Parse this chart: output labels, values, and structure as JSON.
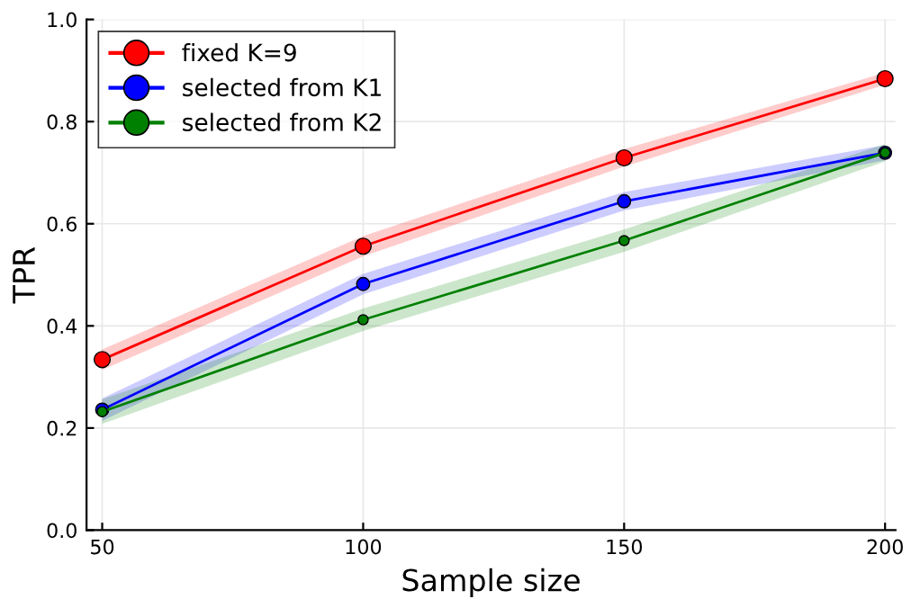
{
  "chart_data": {
    "type": "line",
    "xlabel": "Sample size",
    "ylabel": "TPR",
    "x": [
      50,
      100,
      150,
      200
    ],
    "series": [
      {
        "name": "fixed K=9",
        "color": "#ff0000",
        "values": [
          0.334,
          0.556,
          0.729,
          0.884
        ],
        "lower": [
          0.314,
          0.536,
          0.712,
          0.872
        ],
        "upper": [
          0.354,
          0.576,
          0.746,
          0.896
        ]
      },
      {
        "name": "selected from K1",
        "color": "#0000ff",
        "values": [
          0.236,
          0.482,
          0.644,
          0.739
        ],
        "lower": [
          0.214,
          0.462,
          0.626,
          0.724
        ],
        "upper": [
          0.258,
          0.502,
          0.662,
          0.754
        ]
      },
      {
        "name": "selected from K2",
        "color": "#008000",
        "values": [
          0.232,
          0.412,
          0.567,
          0.739
        ],
        "lower": [
          0.208,
          0.39,
          0.545,
          0.722
        ],
        "upper": [
          0.256,
          0.434,
          0.589,
          0.756
        ]
      }
    ],
    "xlim": [
      47,
      202
    ],
    "ylim": [
      0,
      1
    ],
    "xticks": [
      50,
      100,
      150,
      200
    ],
    "yticks": [
      {
        "value": 0,
        "label": "0.0"
      },
      {
        "value": 0.2,
        "label": "0.2"
      },
      {
        "value": 0.4,
        "label": "0.4"
      },
      {
        "value": 0.6,
        "label": "0.6"
      },
      {
        "value": 0.8,
        "label": "0.8"
      },
      {
        "value": 1,
        "label": "1.0"
      }
    ],
    "grid": true,
    "legend": "top left",
    "marker": "circle",
    "line_style": "solid"
  }
}
